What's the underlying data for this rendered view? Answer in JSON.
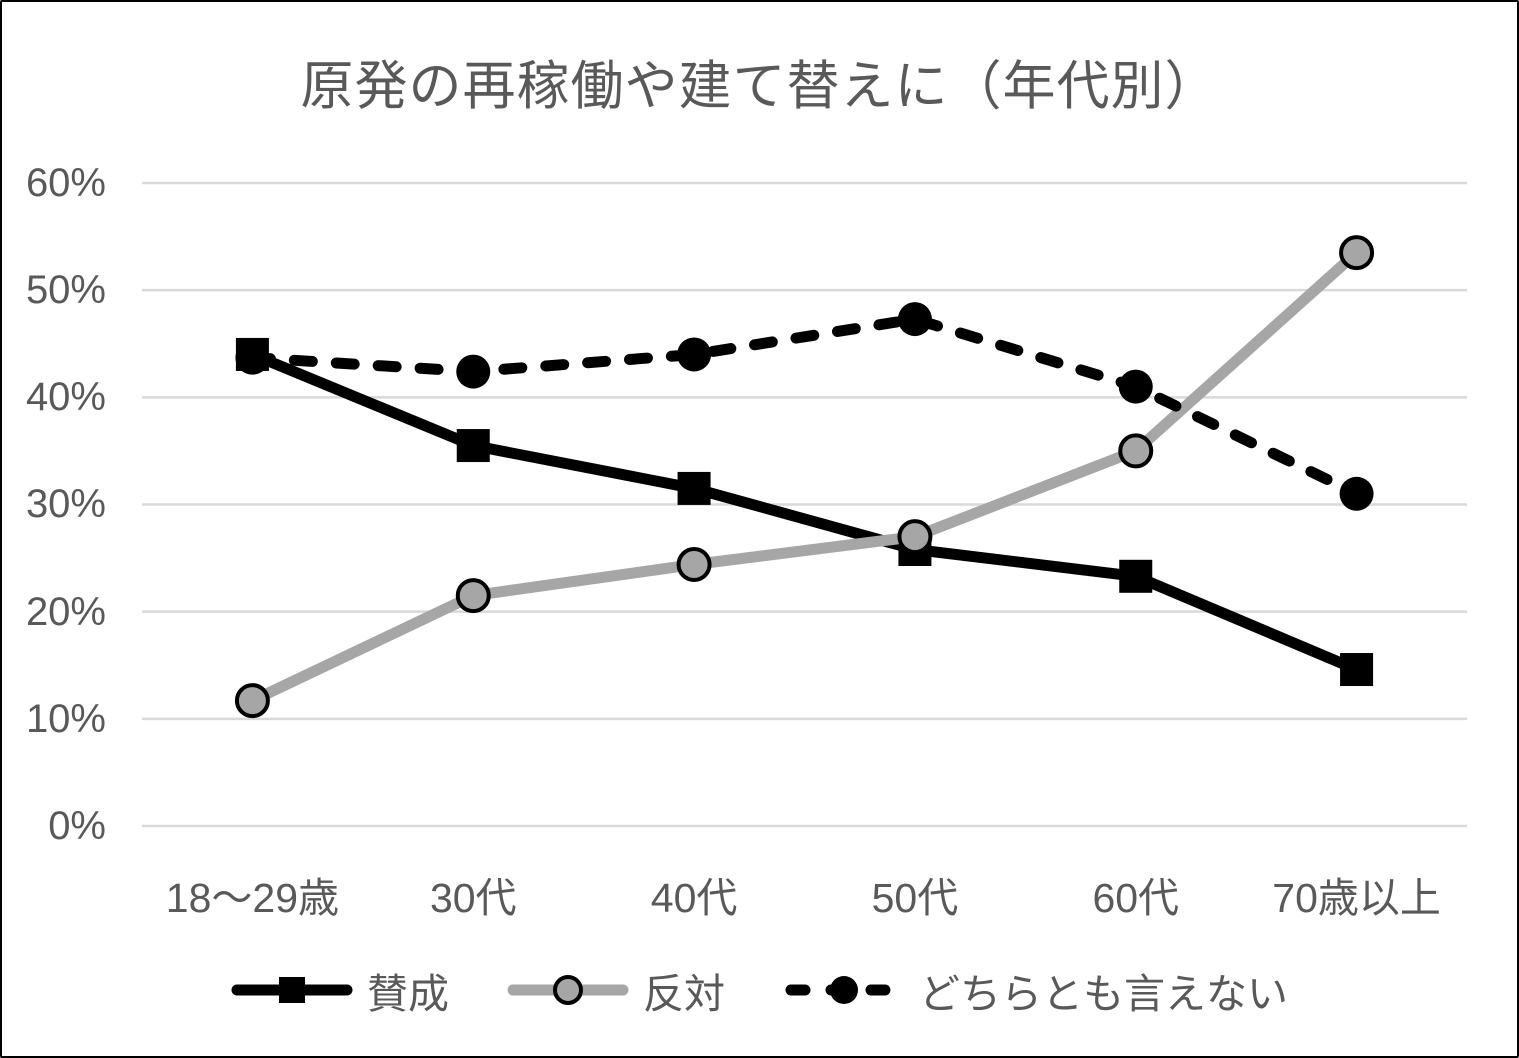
{
  "frame": {
    "background": "#ffffff",
    "border_color": "#000000"
  },
  "chart_data": {
    "type": "line",
    "title": "原発の再稼働や建て替えに（年代別）",
    "categories": [
      "18〜29歳",
      "30代",
      "40代",
      "50代",
      "60代",
      "70歳以上"
    ],
    "series": [
      {
        "name": "賛成",
        "color": "#000000",
        "line_style": "solid",
        "marker": "square",
        "marker_fill": "#000000",
        "values": [
          44,
          35.5,
          31.5,
          25.8,
          23.3,
          14.6
        ]
      },
      {
        "name": "反対",
        "color": "#a6a6a6",
        "line_style": "solid",
        "marker": "circle",
        "marker_fill": "#a6a6a6",
        "marker_stroke": "#000000",
        "values": [
          11.7,
          21.5,
          24.4,
          27,
          35,
          53.5
        ]
      },
      {
        "name": "どちらとも言えない",
        "color": "#000000",
        "line_style": "dashed",
        "marker": "circle",
        "marker_fill": "#000000",
        "values": [
          43.7,
          42.4,
          44,
          47.3,
          41,
          31
        ]
      }
    ],
    "y_ticks": [
      "0%",
      "10%",
      "20%",
      "30%",
      "40%",
      "50%",
      "60%"
    ],
    "ylim": [
      0,
      60
    ],
    "y_step": 10,
    "grid": true,
    "legend_position": "bottom",
    "text_color": "#595959",
    "grid_color": "#d9d9d9"
  }
}
